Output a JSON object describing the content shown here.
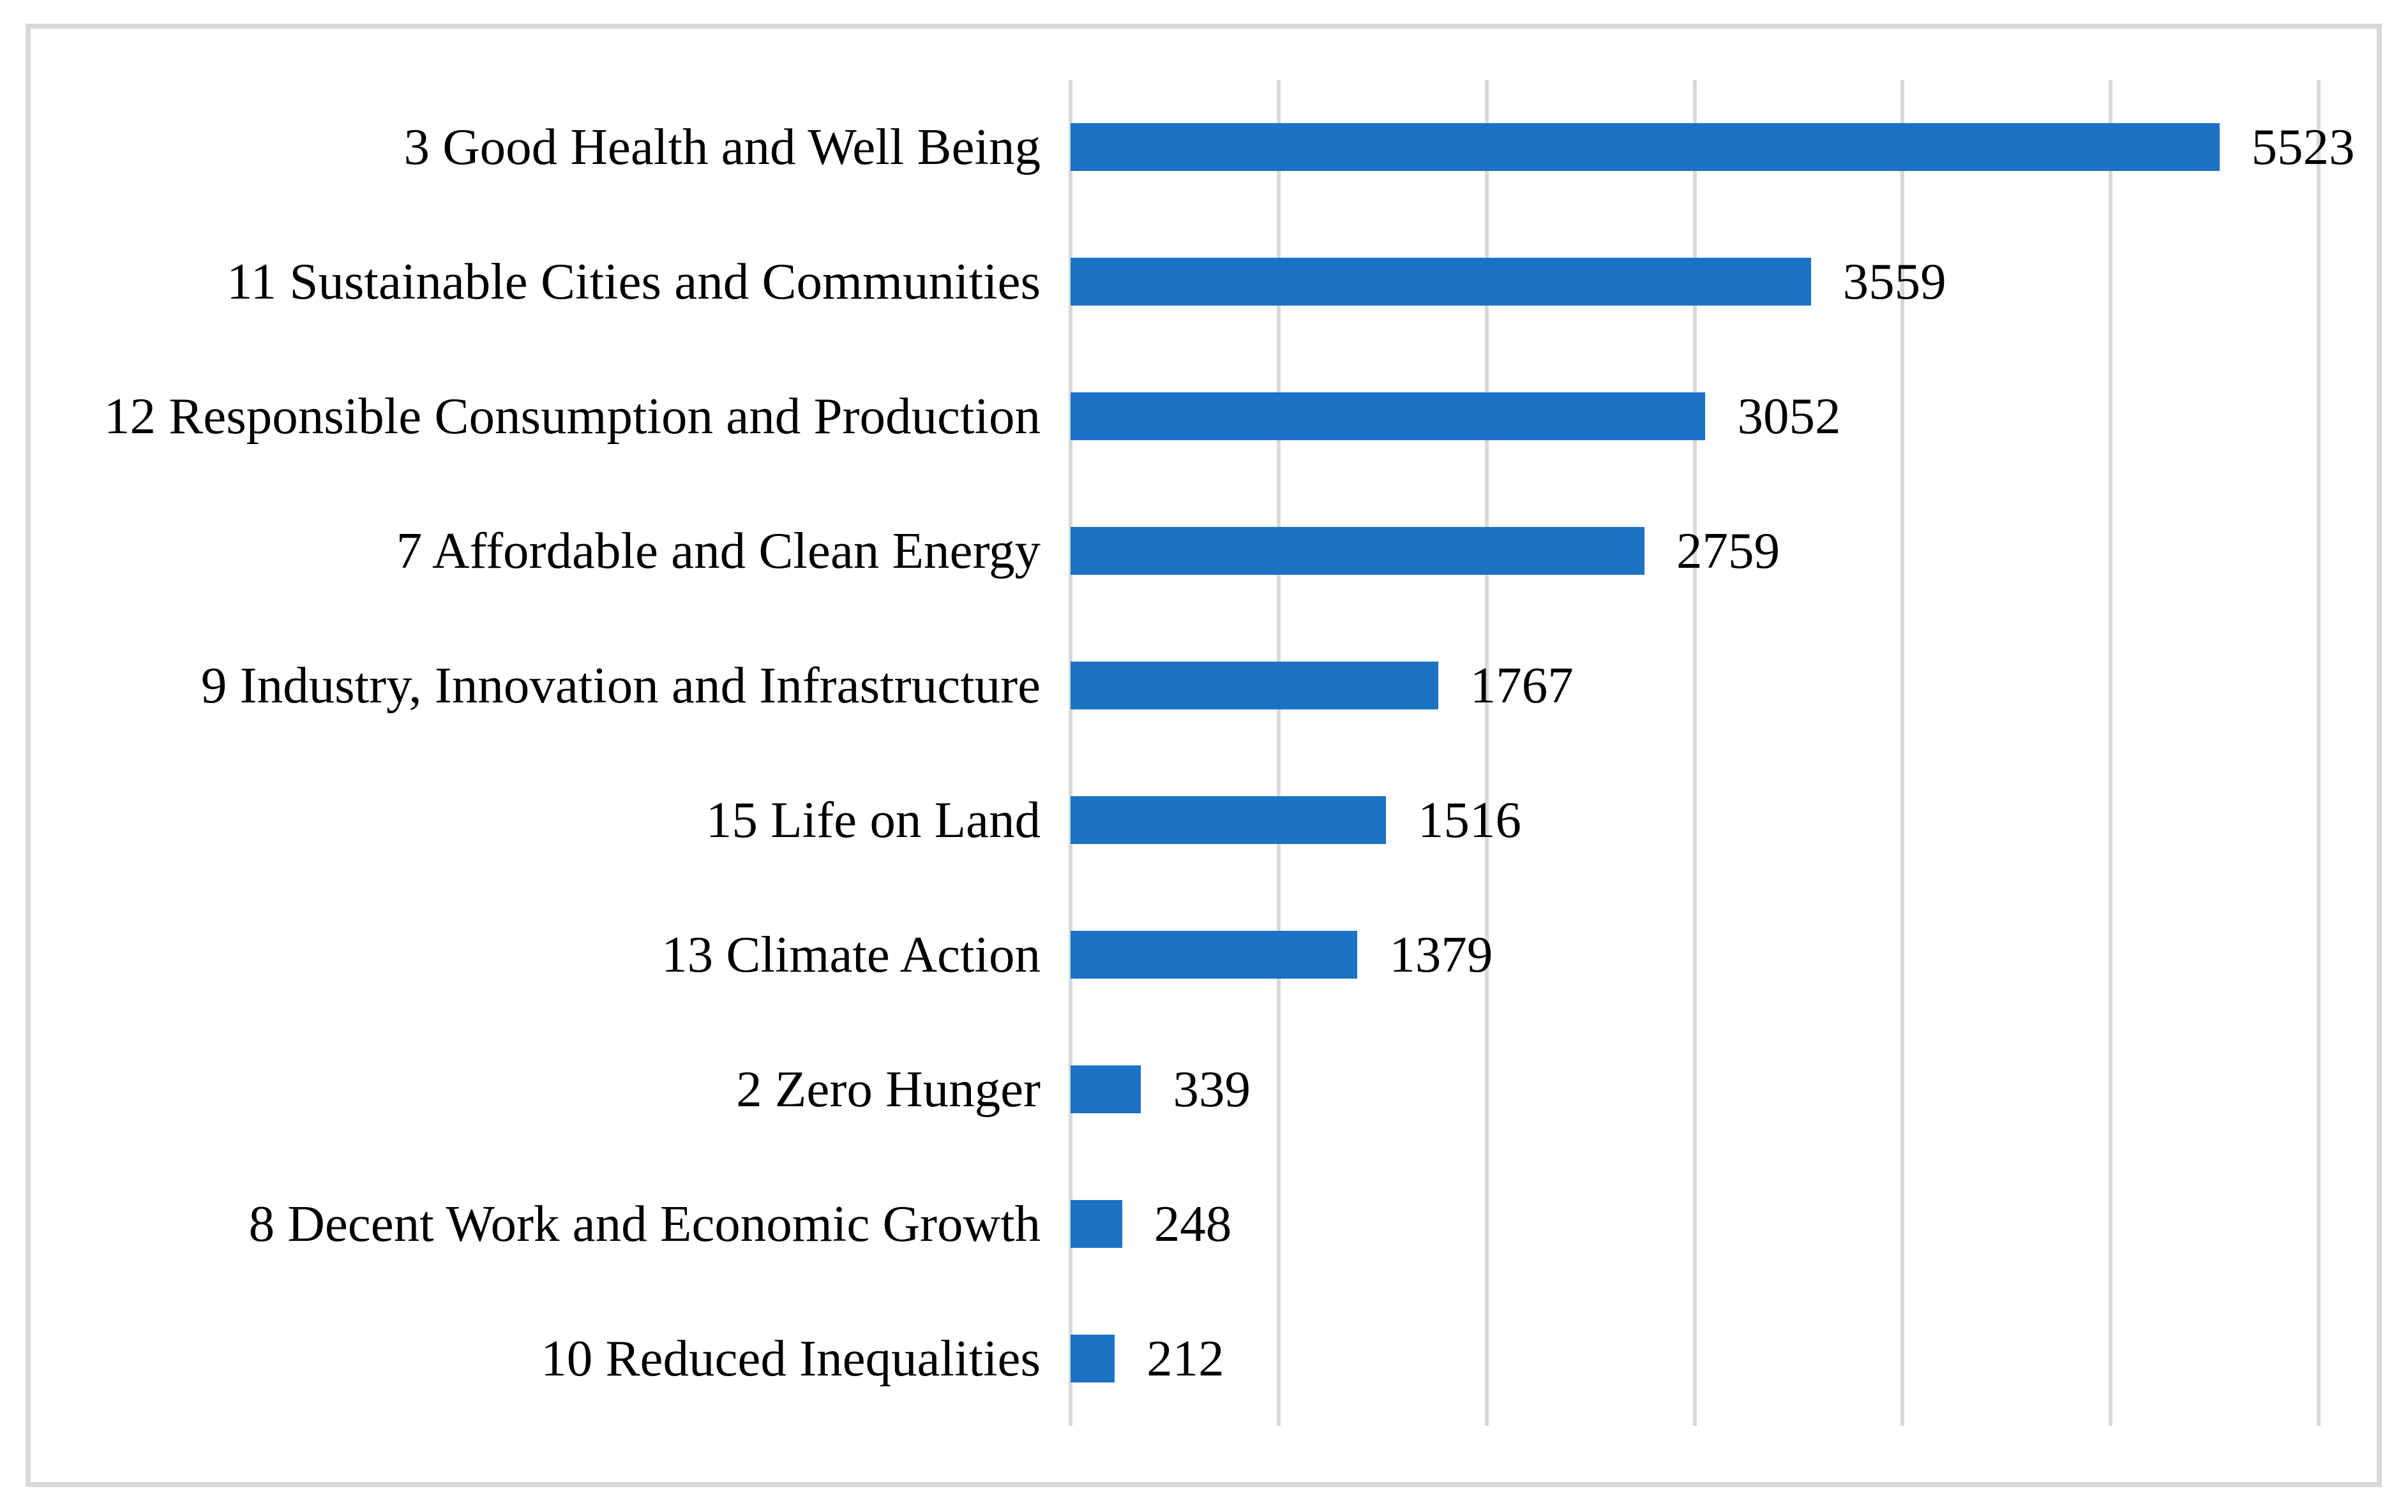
{
  "chart_data": {
    "type": "bar",
    "orientation": "horizontal",
    "title": "",
    "xlabel": "",
    "ylabel": "",
    "categories": [
      "3 Good Health and Well Being",
      "11 Sustainable Cities and Communities",
      "12 Responsible Consumption and Production",
      "7 Affordable and Clean Energy",
      "9 Industry, Innovation and Infrastructure",
      "15 Life on Land",
      "13 Climate Action",
      "2 Zero Hunger",
      "8 Decent Work and Economic Growth",
      "10 Reduced Inequalities"
    ],
    "values": [
      5523,
      3559,
      3052,
      2759,
      1767,
      1516,
      1379,
      339,
      248,
      212
    ],
    "data_labels_visible": true,
    "xlim": [
      0,
      6000
    ],
    "gridline_interval": 1000,
    "grid": true,
    "axis_tick_labels_visible": false,
    "legend": "none",
    "colors": {
      "bar": "#1c73c6",
      "gridline": "#d9d9d9",
      "frame_border": "#d9d9d9",
      "text": "#000000",
      "background": "#ffffff"
    }
  }
}
